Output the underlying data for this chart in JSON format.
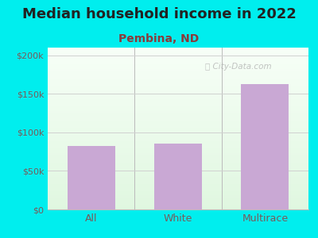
{
  "title": "Median household income in 2022",
  "subtitle": "Pembina, ND",
  "categories": [
    "All",
    "White",
    "Multirace"
  ],
  "values": [
    82000,
    85000,
    163000
  ],
  "bar_color": "#C9A8D4",
  "title_fontsize": 13,
  "subtitle_fontsize": 10,
  "subtitle_color": "#8B3A3A",
  "tick_color": "#7a5a5a",
  "bg_outer": "#00EEEE",
  "ylim": [
    0,
    210000
  ],
  "yticks": [
    0,
    50000,
    100000,
    150000,
    200000
  ],
  "ytick_labels": [
    "$0",
    "$50k",
    "$100k",
    "$150k",
    "$200k"
  ],
  "watermark": "City-Data.com",
  "watermark_color": "#b0b0b0",
  "grid_color": "#d0d0d0"
}
